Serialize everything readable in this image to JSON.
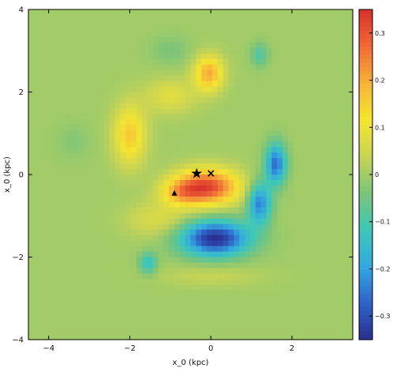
{
  "chart_data": {
    "type": "heatmap",
    "xlabel": "x_0 (kpc)",
    "ylabel": "x_0 (kpc)",
    "xlim": [
      -4.5,
      3.5
    ],
    "ylim": [
      -4,
      4
    ],
    "x_ticks": [
      -4,
      -2,
      0,
      2
    ],
    "x_tick_labels": [
      "−4",
      "−2",
      "0",
      "2"
    ],
    "y_ticks": [
      -4,
      -2,
      0,
      2,
      4
    ],
    "y_tick_labels": [
      "−4",
      "−2",
      "0",
      "2",
      "4"
    ],
    "colorbar": {
      "range": [
        -0.35,
        0.35
      ],
      "ticks": [
        -0.3,
        -0.2,
        -0.1,
        0,
        0.1,
        0.2,
        0.3
      ],
      "tick_labels": [
        "−0.3",
        "−0.2",
        "−0.1",
        "0",
        "0.1",
        "0.2",
        "0.3"
      ],
      "colormap": [
        "#2a2f8f",
        "#2f62c8",
        "#33a9e0",
        "#3ec7b8",
        "#7cc47a",
        "#c8d455",
        "#f5e531",
        "#f6b23a",
        "#f06a36",
        "#d7302b"
      ]
    },
    "background_value": 0.0,
    "features": [
      {
        "name": "peak-center",
        "x": -0.1,
        "y": -0.3,
        "sx": 0.55,
        "sy": 0.3,
        "amp": 0.32
      },
      {
        "name": "peak-center-left",
        "x": -0.75,
        "y": -0.45,
        "sx": 0.35,
        "sy": 0.22,
        "amp": 0.12
      },
      {
        "name": "peak-left",
        "x": -2.0,
        "y": 0.95,
        "sx": 0.28,
        "sy": 0.5,
        "amp": 0.16
      },
      {
        "name": "peak-top",
        "x": -0.05,
        "y": 2.45,
        "sx": 0.25,
        "sy": 0.3,
        "amp": 0.2
      },
      {
        "name": "ridge-upper",
        "x": -1.0,
        "y": 1.9,
        "sx": 0.45,
        "sy": 0.3,
        "amp": 0.08
      },
      {
        "name": "ridge-lower-left",
        "x": -1.3,
        "y": -1.1,
        "sx": 0.55,
        "sy": 0.3,
        "amp": 0.07
      },
      {
        "name": "trough-bottom",
        "x": 0.1,
        "y": -1.55,
        "sx": 0.6,
        "sy": 0.3,
        "amp": -0.35
      },
      {
        "name": "trough-arm-1",
        "x": 1.6,
        "y": 0.25,
        "sx": 0.18,
        "sy": 0.35,
        "amp": -0.26
      },
      {
        "name": "trough-arm-2",
        "x": 1.2,
        "y": -0.7,
        "sx": 0.2,
        "sy": 0.35,
        "amp": -0.24
      },
      {
        "name": "trough-small",
        "x": -1.55,
        "y": -2.15,
        "sx": 0.15,
        "sy": 0.18,
        "amp": -0.14
      },
      {
        "name": "trough-top-right",
        "x": 1.2,
        "y": 2.9,
        "sx": 0.15,
        "sy": 0.2,
        "amp": -0.09
      },
      {
        "name": "trough-upper-mid",
        "x": -1.0,
        "y": 3.0,
        "sx": 0.35,
        "sy": 0.25,
        "amp": -0.04
      },
      {
        "name": "trough-left",
        "x": -3.4,
        "y": 0.8,
        "sx": 0.3,
        "sy": 0.3,
        "amp": -0.03
      },
      {
        "name": "ridge-bottom",
        "x": 0.0,
        "y": -2.45,
        "sx": 0.9,
        "sy": 0.18,
        "amp": 0.04
      }
    ],
    "markers": [
      {
        "name": "star-marker",
        "symbol": "★",
        "x": -0.35,
        "y": 0.02
      },
      {
        "name": "cross-marker",
        "symbol": "×",
        "x": 0.0,
        "y": 0.02
      },
      {
        "name": "triangle-marker",
        "symbol": "▲",
        "x": -0.9,
        "y": -0.45
      }
    ]
  }
}
